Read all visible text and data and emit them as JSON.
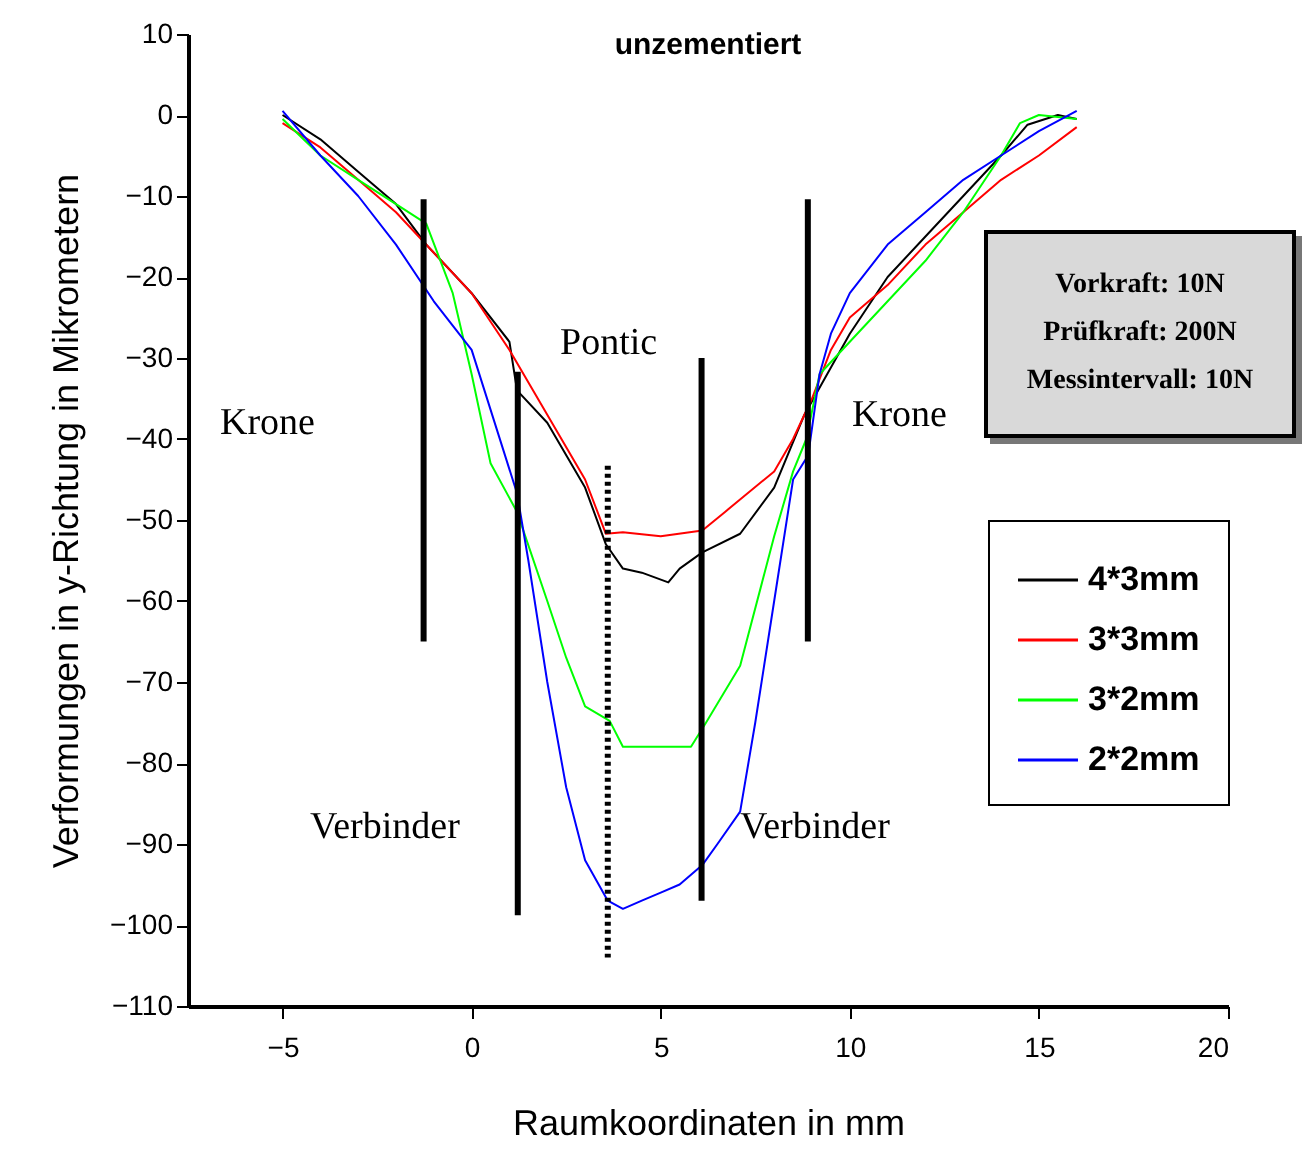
{
  "chart_data": {
    "type": "line",
    "title": "unzementiert",
    "xlabel": "Raumkoordinaten in mm",
    "ylabel": "Verformungen in y-Richtung in Mikrometern",
    "xlim": [
      -7.5,
      20
    ],
    "xticks": [
      -5,
      0,
      5,
      10,
      15,
      20
    ],
    "ylim": [
      -110,
      10
    ],
    "yticks": [
      -110,
      -100,
      -90,
      -80,
      -70,
      -60,
      -50,
      -40,
      -30,
      -20,
      -10,
      0,
      10
    ],
    "grid": false,
    "legend": "right",
    "marker": "none",
    "series": [
      {
        "name": "4*3mm",
        "color": "#000000",
        "x": [
          -5,
          -4,
          -3,
          -2,
          -1.2,
          0,
          1,
          1.2,
          2,
          3,
          3.55,
          4,
          4.5,
          5.2,
          5.5,
          6.1,
          7.1,
          8,
          8.8,
          10,
          11,
          12,
          13,
          14,
          14.7,
          15.5,
          16
        ],
        "values": [
          0,
          -3,
          -7,
          -11,
          -16,
          -22,
          -28,
          -34,
          -38,
          -46,
          -53,
          -56,
          -56.5,
          -57.7,
          -56,
          -54,
          -51.7,
          -46,
          -37,
          -27,
          -20,
          -15,
          -10,
          -5,
          -1.2,
          0,
          -0.5
        ]
      },
      {
        "name": "3*3mm",
        "color": "#ff0000",
        "x": [
          -5,
          -4,
          -3,
          -2,
          -1,
          0,
          1,
          2,
          3,
          3.55,
          4,
          5,
          6.1,
          6.7,
          8,
          8.5,
          9,
          9.5,
          10,
          11,
          12,
          13,
          14,
          15,
          16
        ],
        "values": [
          -1,
          -4,
          -8,
          -12,
          -17,
          -22,
          -29,
          -37,
          -45,
          -51.7,
          -51.5,
          -52,
          -51.3,
          -49,
          -44,
          -40,
          -35,
          -29,
          -25,
          -21,
          -16,
          -12,
          -8,
          -5,
          -1.5
        ]
      },
      {
        "name": "3*2mm",
        "color": "#00ff00",
        "x": [
          -5,
          -4,
          -3,
          -2,
          -1.2,
          -0.5,
          0,
          0.5,
          1.2,
          2,
          2.5,
          3,
          3.65,
          4,
          5,
          5.8,
          6.2,
          7.1,
          8,
          8.5,
          8.85,
          9.2,
          10,
          11,
          12,
          13,
          14,
          14.5,
          15,
          16
        ],
        "values": [
          -0.5,
          -5,
          -8,
          -11,
          -13.4,
          -22,
          -32,
          -43,
          -49,
          -60,
          -67,
          -73,
          -74.8,
          -78,
          -78,
          -78,
          -75,
          -68,
          -52,
          -44,
          -40,
          -32,
          -28,
          -23,
          -18,
          -12,
          -5,
          -1,
          0,
          -0.5
        ]
      },
      {
        "name": "2*2mm",
        "color": "#0000ff",
        "x": [
          -5,
          -4,
          -3,
          -2,
          -1,
          0,
          1.2,
          1.5,
          2,
          2.5,
          3,
          3.6,
          4,
          4.5,
          5,
          5.5,
          6.1,
          6.5,
          7.1,
          7.5,
          8,
          8.5,
          8.9,
          9.2,
          9.5,
          10,
          11,
          12,
          13,
          14,
          15,
          16
        ],
        "values": [
          0.5,
          -5,
          -10,
          -16,
          -23,
          -29,
          -46.7,
          -55,
          -70,
          -83,
          -92,
          -97,
          -98,
          -97,
          -96,
          -95,
          -92.6,
          -90,
          -86,
          -75,
          -60,
          -45,
          -42,
          -32,
          -27,
          -22,
          -16,
          -12,
          -8,
          -5,
          -2,
          0.5
        ]
      },
      {
        "color": "#000000",
        "x": [
          -1.27,
          -1.27
        ],
        "values": [
          -10.4,
          -65
        ]
      },
      {
        "color": "#000000",
        "x": [
          1.22,
          1.22
        ],
        "values": [
          -31.7,
          -98.8
        ]
      },
      {
        "color": "#000000",
        "line_style": "dotted",
        "x": [
          3.6,
          3.6
        ],
        "values": [
          -43.3,
          -104
        ]
      },
      {
        "color": "#000000",
        "x": [
          6.08,
          6.08
        ],
        "values": [
          -30,
          -97
        ]
      },
      {
        "color": "#000000",
        "x": [
          8.89,
          8.89
        ],
        "values": [
          -10.4,
          -65
        ]
      }
    ],
    "annotations": [
      "Krone",
      "Pontic",
      "Krone",
      "Verbinder",
      "Verbinder",
      "Vorkraft: 10N",
      "Prüfkraft: 200N",
      "Messintervall: 10N"
    ]
  }
}
